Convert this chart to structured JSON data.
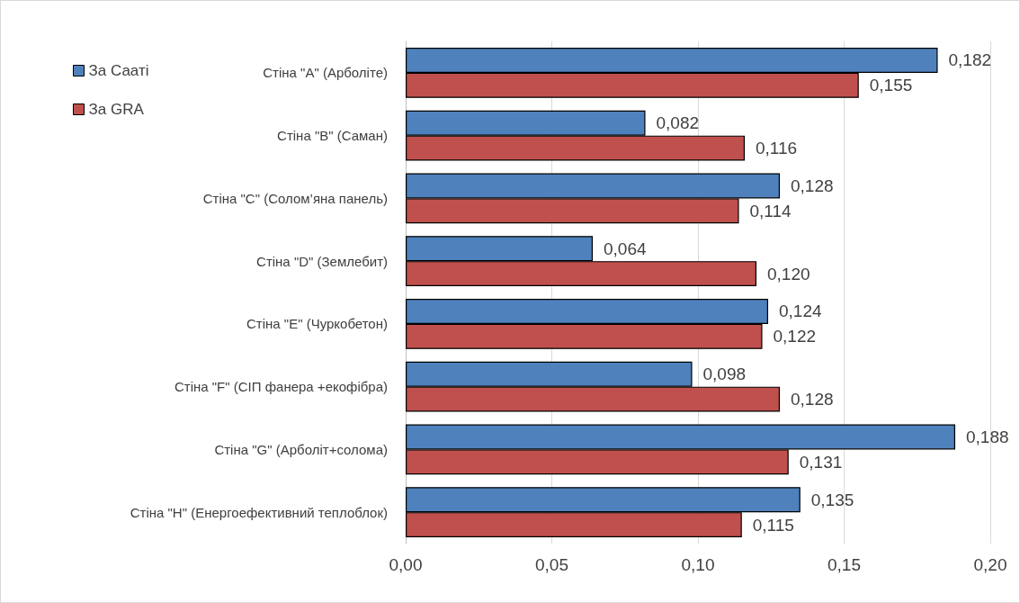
{
  "chart_data": {
    "type": "bar",
    "orientation": "horizontal",
    "categories": [
      "Стіна \"A\" (Арболіте)",
      "Стіна \"B\" (Саман)",
      "Стіна \"C\" (Солом’яна панель)",
      "Стіна \"D\" (Землебит)",
      "Стіна \"E\" (Чуркобетон)",
      "Стіна \"F\" (СІП фанера +екофібра)",
      "Стіна \"G\" (Арболіт+солома)",
      "Стіна \"H\" (Енергоефективний теплоблок)"
    ],
    "series": [
      {
        "name": "За Сааті",
        "color": "#4f81bd",
        "values": [
          0.182,
          0.082,
          0.128,
          0.064,
          0.124,
          0.098,
          0.188,
          0.135
        ],
        "value_labels": [
          "0,182",
          "0,082",
          "0,128",
          "0,064",
          "0,124",
          "0,098",
          "0,188",
          "0,135"
        ]
      },
      {
        "name": "За GRA",
        "color": "#c0504d",
        "values": [
          0.155,
          0.116,
          0.114,
          0.12,
          0.122,
          0.128,
          0.131,
          0.115
        ],
        "value_labels": [
          "0,155",
          "0,116",
          "0,114",
          "0,120",
          "0,122",
          "0,128",
          "0,131",
          "0,115"
        ]
      }
    ],
    "xlim": [
      0,
      0.2
    ],
    "xticks": [
      {
        "value": 0,
        "label": "0,00"
      },
      {
        "value": 0.05,
        "label": "0,05"
      },
      {
        "value": 0.1,
        "label": "0,10"
      },
      {
        "value": 0.15,
        "label": "0,15"
      },
      {
        "value": 0.2,
        "label": "0,20"
      }
    ],
    "grid": "x",
    "legend": "top left"
  }
}
